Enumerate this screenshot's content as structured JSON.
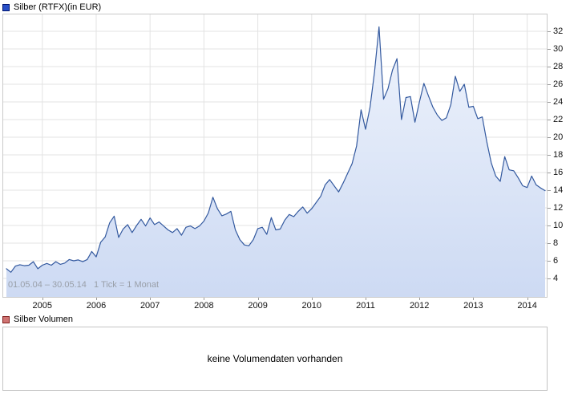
{
  "price_legend": {
    "label": "Silber (RTFX)(in EUR)",
    "swatch_color": "#2950c8",
    "swatch_border": "#00156e"
  },
  "volume_legend": {
    "label": "Silber Volumen",
    "swatch_color": "#d07473",
    "swatch_border": "#801e1c"
  },
  "footnote": "01.05.04 – 30.05.14   1 Tick = 1 Monat",
  "volume_message": "keine Volumendaten vorhanden",
  "chart_data": [
    {
      "type": "area",
      "title": "Silber (RTFX)(in EUR)",
      "series_name": "Silber",
      "currency": "EUR",
      "date_range": {
        "start": "01.05.04",
        "end": "30.05.14"
      },
      "tick_note": "1 Tick = 1 Monat",
      "x_months_start": "2004-05",
      "x_months_end": "2014-05",
      "x_tick_labels": [
        "2005",
        "2006",
        "2007",
        "2008",
        "2009",
        "2010",
        "2011",
        "2012",
        "2013",
        "2014"
      ],
      "y_ticks": [
        32,
        30,
        28,
        26,
        24,
        22,
        20,
        18,
        16,
        14,
        12,
        10,
        8,
        6,
        4
      ],
      "ylim": [
        1.9,
        34.1
      ],
      "grid": true,
      "legend_position": "top-left",
      "line_color": "#33599f",
      "fill_gradient_top": "#eef3fc",
      "fill_gradient_bottom": "#cddaf3",
      "values_monthly": [
        5.1,
        4.7,
        5.4,
        5.55,
        5.45,
        5.5,
        5.9,
        5.1,
        5.5,
        5.7,
        5.5,
        5.9,
        5.6,
        5.75,
        6.15,
        6.0,
        6.1,
        5.9,
        6.15,
        7.05,
        6.45,
        8.1,
        8.7,
        10.3,
        11.05,
        8.65,
        9.6,
        10.1,
        9.2,
        10.0,
        10.7,
        9.95,
        10.85,
        10.1,
        10.4,
        9.95,
        9.5,
        9.2,
        9.65,
        8.9,
        9.8,
        9.95,
        9.65,
        9.95,
        10.5,
        11.45,
        13.2,
        11.9,
        11.1,
        11.3,
        11.6,
        9.5,
        8.4,
        7.8,
        7.7,
        8.4,
        9.65,
        9.8,
        9.0,
        10.9,
        9.5,
        9.6,
        10.6,
        11.25,
        11.0,
        11.6,
        12.1,
        11.4,
        11.9,
        12.6,
        13.3,
        14.6,
        15.2,
        14.5,
        13.8,
        14.8,
        15.9,
        17.0,
        19.0,
        23.1,
        20.9,
        23.4,
        27.4,
        32.5,
        24.3,
        25.5,
        27.6,
        28.9,
        22.0,
        24.5,
        24.6,
        21.7,
        24.0,
        26.1,
        24.7,
        23.4,
        22.5,
        21.9,
        22.2,
        23.7,
        26.9,
        25.2,
        26.0,
        23.4,
        23.5,
        22.1,
        22.3,
        19.5,
        17.1,
        15.6,
        15.0,
        17.8,
        16.3,
        16.2,
        15.4,
        14.5,
        14.3,
        15.6,
        14.6,
        14.25,
        13.95
      ]
    },
    {
      "type": "area",
      "title": "Silber Volumen",
      "message": "keine Volumendaten vorhanden",
      "values_monthly": []
    }
  ]
}
